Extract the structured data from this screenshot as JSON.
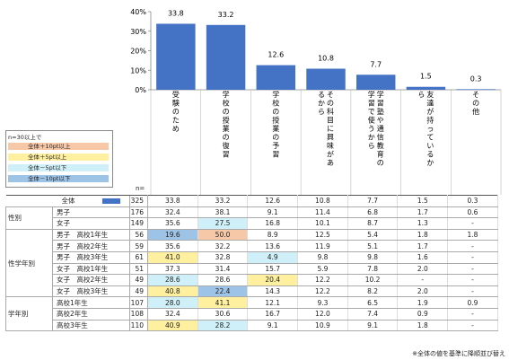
{
  "chart_data": {
    "type": "bar",
    "categories": [
      "受験のため",
      "学校の授業の復習",
      "学校の授業の予習",
      "その科目に興味があるから",
      "学習塾や通信教育の学習で使うから",
      "友達が持っているから",
      "その他"
    ],
    "values": [
      33.8,
      33.2,
      12.6,
      10.8,
      7.7,
      1.5,
      0.3
    ],
    "value_labels": [
      "33.8",
      "33.2",
      "12.6",
      "10.8",
      "7.7",
      "1.5",
      "0.3"
    ],
    "yticks": [
      "0%",
      "10%",
      "20%",
      "30%",
      "40%"
    ],
    "ylim": [
      0,
      40
    ],
    "bar_color": "#4472C4"
  },
  "legend": {
    "title": "n=30以上で",
    "items": [
      {
        "label": "全体＋10pt以上",
        "color": "#F7C8A8"
      },
      {
        "label": "全体＋5pt以上",
        "color": "#FFF0A0"
      },
      {
        "label": "全体－5pt以下",
        "color": "#CFF0F8"
      },
      {
        "label": "全体－10pt以下",
        "color": "#9DC3E6"
      }
    ]
  },
  "n_label": "n=",
  "table": {
    "rows": [
      {
        "group": "",
        "label": "全体",
        "n": "325",
        "values": [
          "33.8",
          "33.2",
          "12.6",
          "10.8",
          "7.7",
          "1.5",
          "0.3"
        ],
        "hl": [
          "",
          "",
          "",
          "",
          "",
          "",
          ""
        ]
      },
      {
        "group": "性別",
        "label": "男子",
        "n": "176",
        "values": [
          "32.4",
          "38.1",
          "9.1",
          "11.4",
          "6.8",
          "1.7",
          "0.6"
        ],
        "hl": [
          "",
          "",
          "",
          "",
          "",
          "",
          ""
        ]
      },
      {
        "group": "",
        "label": "女子",
        "n": "149",
        "values": [
          "35.6",
          "27.5",
          "16.8",
          "10.1",
          "8.7",
          "1.3",
          "-"
        ],
        "hl": [
          "",
          "m5",
          "",
          "",
          "",
          "",
          ""
        ]
      },
      {
        "group": "性学年別",
        "label": "男子　高校1年生",
        "n": "56",
        "values": [
          "19.6",
          "50.0",
          "8.9",
          "12.5",
          "5.4",
          "1.8",
          "1.8"
        ],
        "hl": [
          "m10",
          "p10",
          "",
          "",
          "",
          "",
          ""
        ]
      },
      {
        "group": "",
        "label": "男子　高校2年生",
        "n": "59",
        "values": [
          "35.6",
          "32.2",
          "13.6",
          "11.9",
          "5.1",
          "1.7",
          "-"
        ],
        "hl": [
          "",
          "",
          "",
          "",
          "",
          "",
          ""
        ]
      },
      {
        "group": "",
        "label": "男子　高校3年生",
        "n": "61",
        "values": [
          "41.0",
          "32.8",
          "4.9",
          "9.8",
          "9.8",
          "1.6",
          "-"
        ],
        "hl": [
          "p5",
          "",
          "m5",
          "",
          "",
          "",
          ""
        ]
      },
      {
        "group": "",
        "label": "女子　高校1年生",
        "n": "51",
        "values": [
          "37.3",
          "31.4",
          "15.7",
          "5.9",
          "7.8",
          "2.0",
          "-"
        ],
        "hl": [
          "",
          "",
          "",
          "",
          "",
          "",
          ""
        ]
      },
      {
        "group": "",
        "label": "女子　高校2年生",
        "n": "49",
        "values": [
          "28.6",
          "28.6",
          "20.4",
          "12.2",
          "10.2",
          "-",
          "-"
        ],
        "hl": [
          "m5",
          "",
          "p5",
          "",
          "",
          "",
          ""
        ]
      },
      {
        "group": "",
        "label": "女子　高校3年生",
        "n": "49",
        "values": [
          "40.8",
          "22.4",
          "14.3",
          "12.2",
          "8.2",
          "2.0",
          "-"
        ],
        "hl": [
          "p5",
          "m10",
          "",
          "",
          "",
          "",
          ""
        ]
      },
      {
        "group": "学年別",
        "label": "高校1年生",
        "n": "107",
        "values": [
          "28.0",
          "41.1",
          "12.1",
          "9.3",
          "6.5",
          "1.9",
          "0.9"
        ],
        "hl": [
          "m5",
          "p5",
          "",
          "",
          "",
          "",
          ""
        ]
      },
      {
        "group": "",
        "label": "高校2年生",
        "n": "108",
        "values": [
          "32.4",
          "30.6",
          "16.7",
          "12.0",
          "7.4",
          "0.9",
          "-"
        ],
        "hl": [
          "",
          "",
          "",
          "",
          "",
          "",
          ""
        ]
      },
      {
        "group": "",
        "label": "高校3年生",
        "n": "110",
        "values": [
          "40.9",
          "28.2",
          "9.1",
          "10.9",
          "9.1",
          "1.8",
          "-"
        ],
        "hl": [
          "p5",
          "m5",
          "",
          "",
          "",
          "",
          ""
        ]
      }
    ]
  },
  "footnote": "※全体の値を基準に降順並び替え"
}
